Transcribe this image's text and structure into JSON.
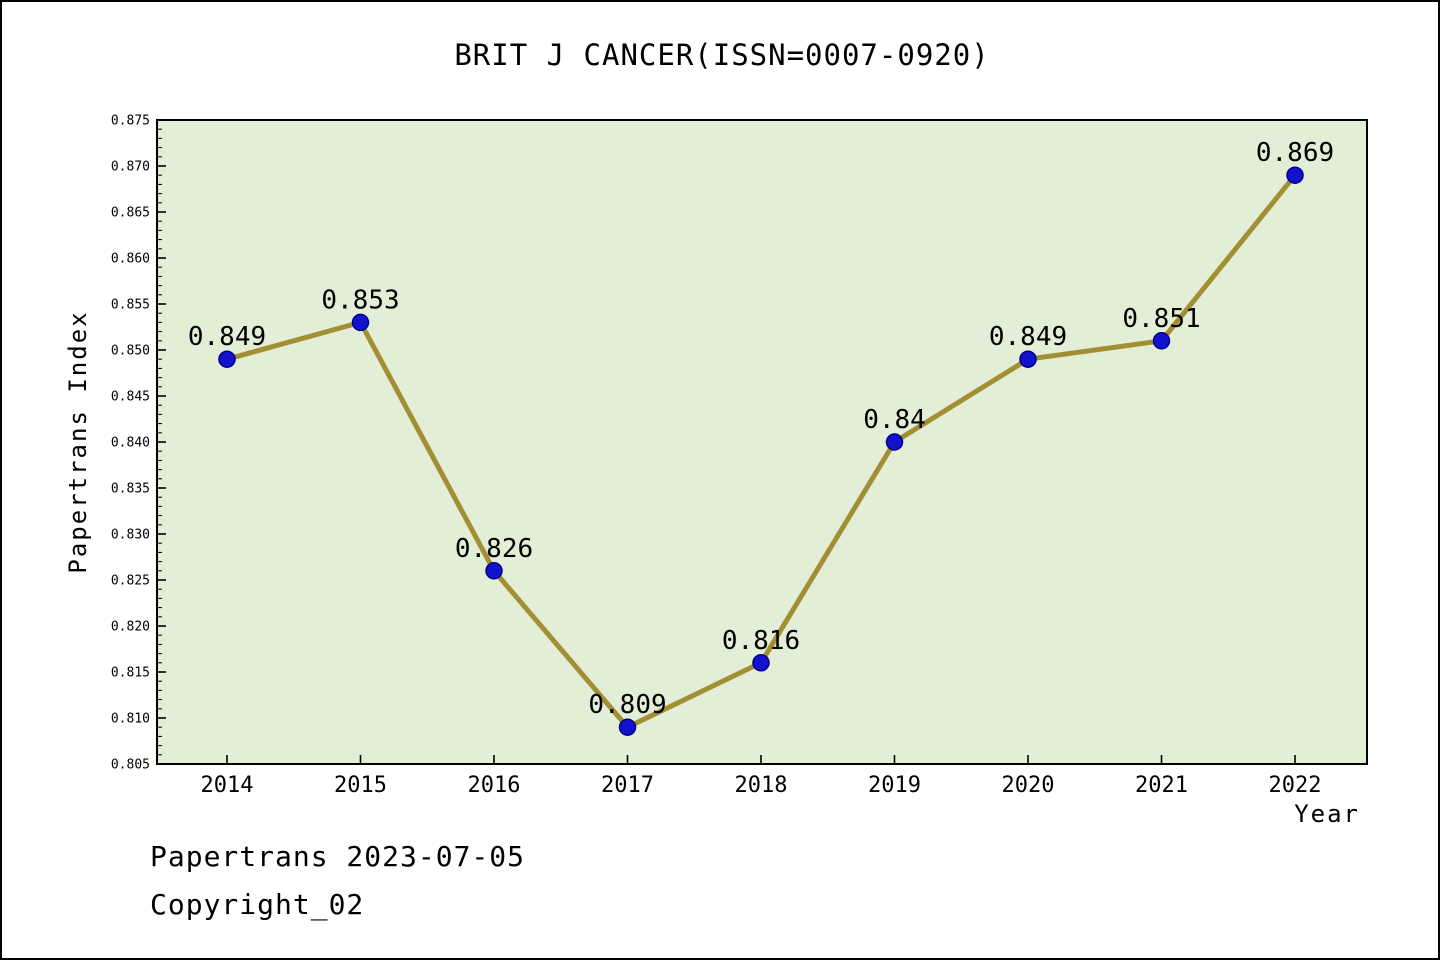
{
  "page": {
    "footer_line1": "Papertrans 2023-07-05",
    "footer_line2": "Copyright_02"
  },
  "chart_data": {
    "type": "line",
    "title": "BRIT J CANCER(ISSN=0007-0920)",
    "xlabel": "Year",
    "ylabel": "Papertrans Index",
    "x": [
      2014,
      2015,
      2016,
      2017,
      2018,
      2019,
      2020,
      2021,
      2022
    ],
    "values": [
      0.849,
      0.853,
      0.826,
      0.809,
      0.816,
      0.84,
      0.849,
      0.851,
      0.869
    ],
    "point_labels": [
      "0.849",
      "0.853",
      "0.826",
      "0.809",
      "0.816",
      "0.84",
      "0.849",
      "0.851",
      "0.869"
    ],
    "ylim": [
      0.805,
      0.875
    ],
    "ytick_step": 0.005,
    "ytick_minor_step": 0.001,
    "grid": false,
    "legend": null,
    "colors": {
      "plot_bg": "#e3eed7",
      "line": "#a38f33",
      "marker": "#1212cc",
      "marker_edge": "#00008b",
      "axis": "#000000",
      "text": "#000000"
    }
  }
}
